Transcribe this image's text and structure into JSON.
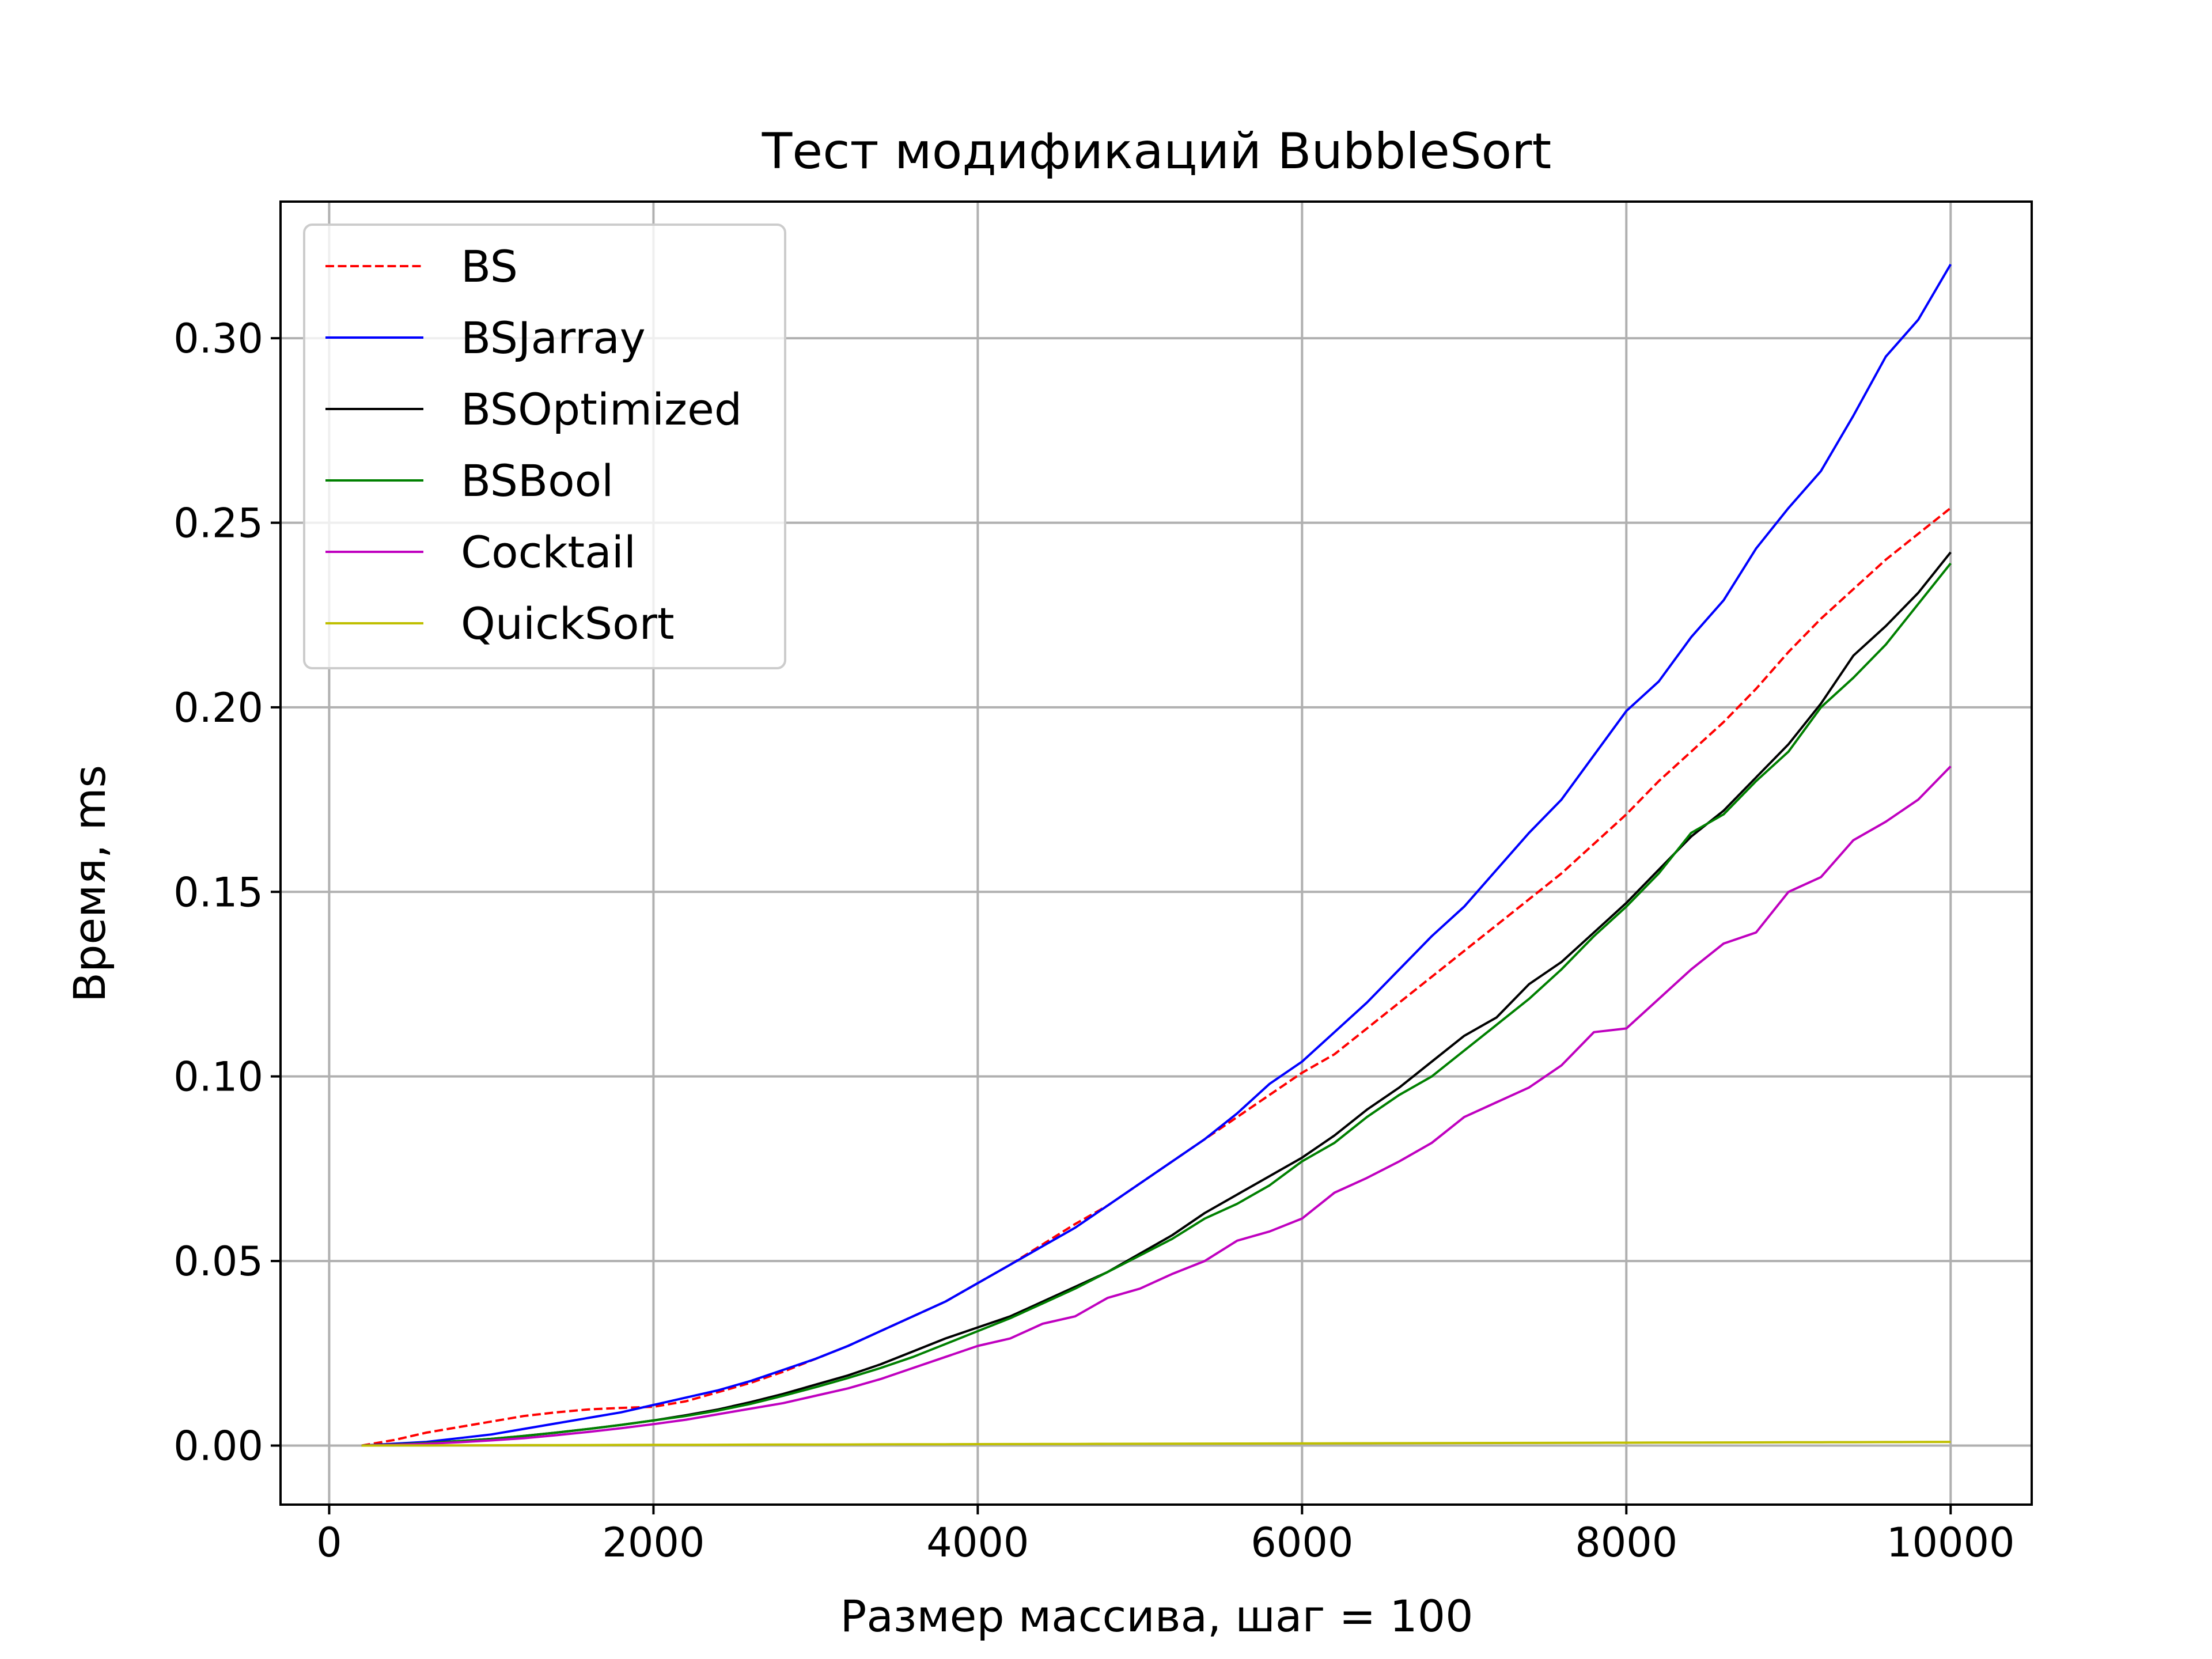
{
  "chart_data": {
    "type": "line",
    "title": "Тест модификаций BubbleSort",
    "xlabel": "Размер массива, шаг = 100",
    "ylabel": "Время, ms",
    "xlim": [
      -300,
      10500
    ],
    "ylim": [
      -0.016,
      0.337
    ],
    "xticks": [
      0,
      2000,
      4000,
      6000,
      8000,
      10000
    ],
    "xtick_labels": [
      "0",
      "2000",
      "4000",
      "6000",
      "8000",
      "10000"
    ],
    "yticks": [
      0.0,
      0.05,
      0.1,
      0.15,
      0.2,
      0.25,
      0.3
    ],
    "ytick_labels": [
      "0.00",
      "0.05",
      "0.10",
      "0.15",
      "0.20",
      "0.25",
      "0.30"
    ],
    "grid": true,
    "legend_position": "upper-left",
    "x": [
      200,
      400,
      600,
      800,
      1000,
      1200,
      1400,
      1600,
      1800,
      2000,
      2200,
      2400,
      2600,
      2800,
      3000,
      3200,
      3400,
      3600,
      3800,
      4000,
      4200,
      4400,
      4600,
      4800,
      5000,
      5200,
      5400,
      5600,
      5800,
      6000,
      6200,
      6400,
      6600,
      6800,
      7000,
      7200,
      7400,
      7600,
      7800,
      8000,
      8200,
      8400,
      8600,
      8800,
      9000,
      9200,
      9400,
      9600,
      9800,
      10000
    ],
    "series": [
      {
        "name": "BS",
        "color": "#ff0000",
        "dash": true,
        "values": [
          0.0,
          0.0015,
          0.0035,
          0.005,
          0.0065,
          0.008,
          0.009,
          0.0098,
          0.0102,
          0.0105,
          0.012,
          0.0145,
          0.017,
          0.02,
          0.0235,
          0.027,
          0.031,
          0.035,
          0.039,
          0.044,
          0.049,
          0.0545,
          0.06,
          0.065,
          0.071,
          0.077,
          0.083,
          0.089,
          0.095,
          0.101,
          0.106,
          0.113,
          0.12,
          0.127,
          0.134,
          0.141,
          0.148,
          0.155,
          0.163,
          0.171,
          0.18,
          0.188,
          0.196,
          0.205,
          0.215,
          0.224,
          0.232,
          0.24,
          0.247,
          0.254
        ]
      },
      {
        "name": "BSJarray",
        "color": "#0000ff",
        "dash": false,
        "values": [
          0.0,
          0.0005,
          0.001,
          0.002,
          0.003,
          0.0045,
          0.006,
          0.0075,
          0.009,
          0.011,
          0.013,
          0.015,
          0.0175,
          0.0205,
          0.0235,
          0.027,
          0.031,
          0.035,
          0.039,
          0.044,
          0.049,
          0.054,
          0.059,
          0.065,
          0.071,
          0.077,
          0.083,
          0.09,
          0.098,
          0.104,
          0.112,
          0.12,
          0.129,
          0.138,
          0.146,
          0.156,
          0.166,
          0.175,
          0.187,
          0.199,
          0.207,
          0.219,
          0.229,
          0.243,
          0.254,
          0.264,
          0.279,
          0.295,
          0.305,
          0.32
        ]
      },
      {
        "name": "BSOptimized",
        "color": "#000000",
        "dash": false,
        "values": [
          0.0,
          0.0003,
          0.0007,
          0.0012,
          0.0018,
          0.0026,
          0.0035,
          0.0045,
          0.0056,
          0.0068,
          0.0082,
          0.0098,
          0.0118,
          0.014,
          0.0165,
          0.019,
          0.022,
          0.0255,
          0.029,
          0.032,
          0.035,
          0.039,
          0.043,
          0.047,
          0.052,
          0.057,
          0.063,
          0.068,
          0.073,
          0.078,
          0.084,
          0.091,
          0.097,
          0.104,
          0.111,
          0.116,
          0.125,
          0.131,
          0.139,
          0.147,
          0.156,
          0.165,
          0.172,
          0.181,
          0.19,
          0.201,
          0.214,
          0.222,
          0.231,
          0.242
        ]
      },
      {
        "name": "BSBool",
        "color": "#008000",
        "dash": false,
        "values": [
          0.0,
          0.0003,
          0.0007,
          0.0012,
          0.0018,
          0.0026,
          0.0035,
          0.0045,
          0.0056,
          0.0068,
          0.008,
          0.0095,
          0.0113,
          0.0135,
          0.0158,
          0.0183,
          0.021,
          0.024,
          0.0275,
          0.031,
          0.0345,
          0.0385,
          0.0425,
          0.047,
          0.0515,
          0.056,
          0.0615,
          0.0655,
          0.0705,
          0.077,
          0.082,
          0.089,
          0.095,
          0.1,
          0.107,
          0.114,
          0.121,
          0.129,
          0.138,
          0.146,
          0.155,
          0.166,
          0.171,
          0.18,
          0.188,
          0.2,
          0.208,
          0.217,
          0.228,
          0.239
        ]
      },
      {
        "name": "Cocktail",
        "color": "#bf00bf",
        "dash": false,
        "values": [
          0.0,
          0.0002,
          0.0005,
          0.0009,
          0.0014,
          0.002,
          0.0028,
          0.0037,
          0.0047,
          0.0058,
          0.007,
          0.0085,
          0.01,
          0.0115,
          0.0135,
          0.0155,
          0.018,
          0.021,
          0.024,
          0.027,
          0.029,
          0.033,
          0.035,
          0.04,
          0.0425,
          0.0465,
          0.05,
          0.0555,
          0.058,
          0.0615,
          0.0685,
          0.0725,
          0.077,
          0.082,
          0.089,
          0.093,
          0.097,
          0.103,
          0.112,
          0.113,
          0.121,
          0.129,
          0.136,
          0.139,
          0.15,
          0.154,
          0.164,
          0.169,
          0.175,
          0.184
        ]
      },
      {
        "name": "QuickSort",
        "color": "#bfbf00",
        "dash": false,
        "values": [
          0.0,
          2e-05,
          4e-05,
          6e-05,
          8e-05,
          0.0001,
          0.00012,
          0.00014,
          0.00016,
          0.00018,
          0.0002,
          0.00022,
          0.00024,
          0.00026,
          0.00028,
          0.0003,
          0.00032,
          0.00034,
          0.00036,
          0.00038,
          0.0004,
          0.00042,
          0.00044,
          0.00046,
          0.00048,
          0.0005,
          0.00052,
          0.00054,
          0.00056,
          0.00058,
          0.0006,
          0.00062,
          0.00064,
          0.00066,
          0.00068,
          0.0007,
          0.00072,
          0.00074,
          0.00076,
          0.00078,
          0.0008,
          0.00082,
          0.00084,
          0.00086,
          0.00088,
          0.0009,
          0.00092,
          0.00094,
          0.00096,
          0.001
        ]
      }
    ]
  }
}
